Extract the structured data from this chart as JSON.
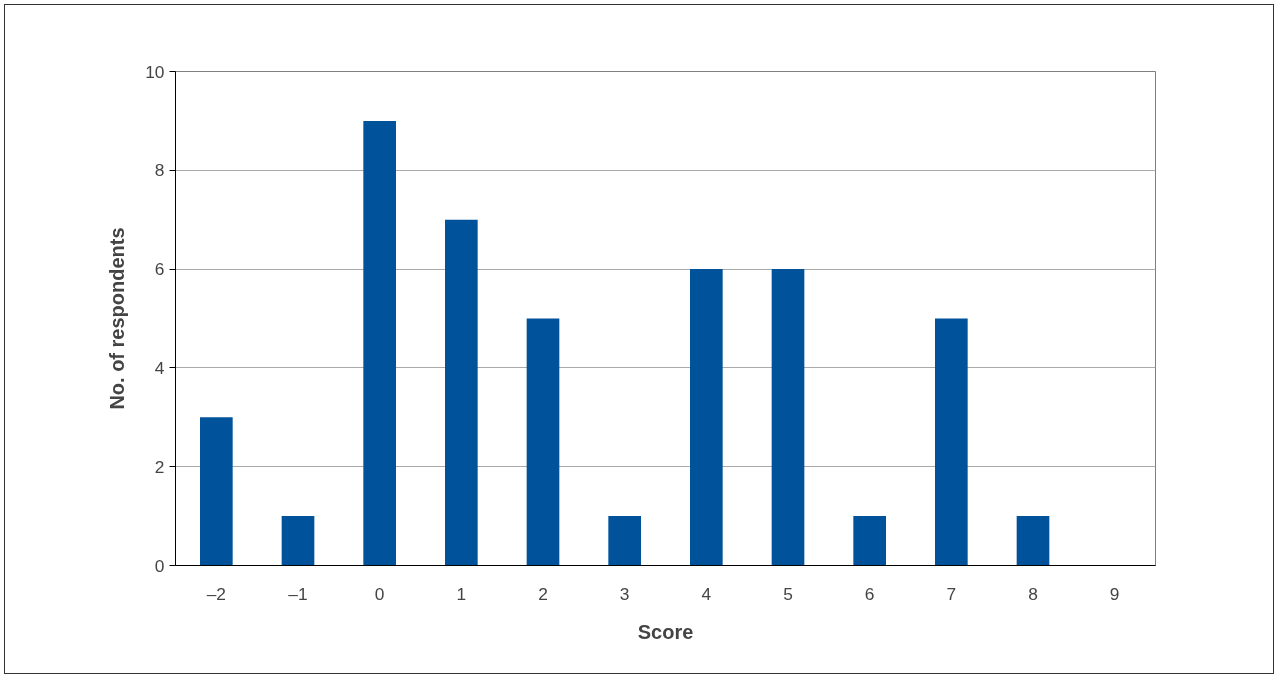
{
  "chart_data": {
    "type": "bar",
    "xlabel": "Score",
    "ylabel": "No. of respondents",
    "categories": [
      "–2",
      "–1",
      "0",
      "1",
      "2",
      "3",
      "4",
      "5",
      "6",
      "7",
      "8",
      "9"
    ],
    "values": [
      3,
      1,
      9,
      7,
      5,
      1,
      6,
      6,
      1,
      5,
      1,
      0
    ],
    "color": "#00529b",
    "ylim": [
      0,
      10
    ],
    "yticks": [
      0,
      2,
      4,
      6,
      8,
      10
    ],
    "grid": "y"
  }
}
